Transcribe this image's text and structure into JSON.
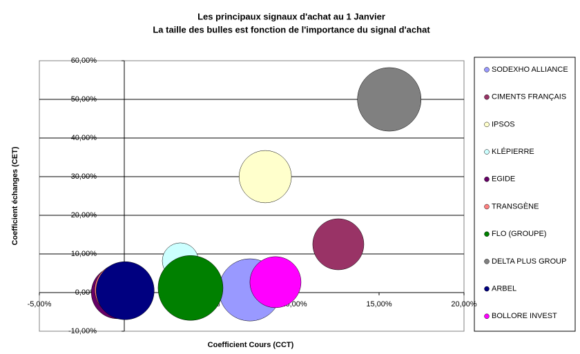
{
  "chart_data": {
    "type": "bubble",
    "title": "Les principaux signaux d'achat au 1 Janvier",
    "subtitle": "La taille des bulles est fonction de l'importance du signal d'achat",
    "x_label": "Coefficient Cours (CCT)",
    "y_label": "Coefficient échanges (CET)",
    "xlim": [
      -5,
      20
    ],
    "xticks": [
      {
        "value": -5,
        "label": "-5,00%"
      },
      {
        "value": 0,
        "label": "0,00%"
      },
      {
        "value": 5,
        "label": "5,00%"
      },
      {
        "value": 10,
        "label": "10,00%"
      },
      {
        "value": 15,
        "label": "15,00%"
      },
      {
        "value": 20,
        "label": "20,00%"
      }
    ],
    "ylim": [
      -10,
      60
    ],
    "yticks": [
      {
        "value": -10,
        "label": "-10,00%"
      },
      {
        "value": 0,
        "label": "0,00%"
      },
      {
        "value": 10,
        "label": "10,00%"
      },
      {
        "value": 20,
        "label": "20,00%"
      },
      {
        "value": 30,
        "label": "30,00%"
      },
      {
        "value": 40,
        "label": "40,00%"
      },
      {
        "value": 50,
        "label": "50,00%"
      },
      {
        "value": 60,
        "label": "60,00%"
      }
    ],
    "grid": true,
    "legend": "right",
    "series": [
      {
        "name": "SODEXHO ALLIANCE",
        "color": "#9999ff",
        "x": [
          7.4
        ],
        "values": [
          0.7
        ],
        "sizes": [
          92
        ]
      },
      {
        "name": "CIMENTS FRANÇAIS",
        "color": "#993366",
        "x": [
          12.6
        ],
        "values": [
          12.5
        ],
        "sizes": [
          62
        ]
      },
      {
        "name": "IPSOS",
        "color": "#ffffcc",
        "x": [
          8.3
        ],
        "values": [
          30
        ],
        "sizes": [
          65
        ]
      },
      {
        "name": "KLÉPIERRE",
        "color": "#ccffff",
        "x": [
          3.3
        ],
        "values": [
          8.2
        ],
        "sizes": [
          31
        ]
      },
      {
        "name": "EGIDE",
        "color": "#660066",
        "x": [
          -0.4
        ],
        "values": [
          0
        ],
        "sizes": [
          65
        ]
      },
      {
        "name": "TRANSGÈNE",
        "color": "#ff8080",
        "x": [
          -0.2
        ],
        "values": [
          0.7
        ],
        "sizes": [
          65
        ]
      },
      {
        "name": "FLO (GROUPE)",
        "color": "#008000",
        "x": [
          3.9
        ],
        "values": [
          1.2
        ],
        "sizes": [
          100
        ]
      },
      {
        "name": "DELTA PLUS GROUP",
        "color": "#808080",
        "x": [
          15.6
        ],
        "values": [
          50
        ],
        "sizes": [
          96
        ]
      },
      {
        "name": "ARBEL",
        "color": "#000080",
        "x": [
          0.05
        ],
        "values": [
          0.5
        ],
        "sizes": [
          80
        ]
      },
      {
        "name": "BOLLORE INVEST",
        "color": "#ff00ff",
        "x": [
          8.9
        ],
        "values": [
          2.7
        ],
        "sizes": [
          62
        ]
      }
    ]
  }
}
